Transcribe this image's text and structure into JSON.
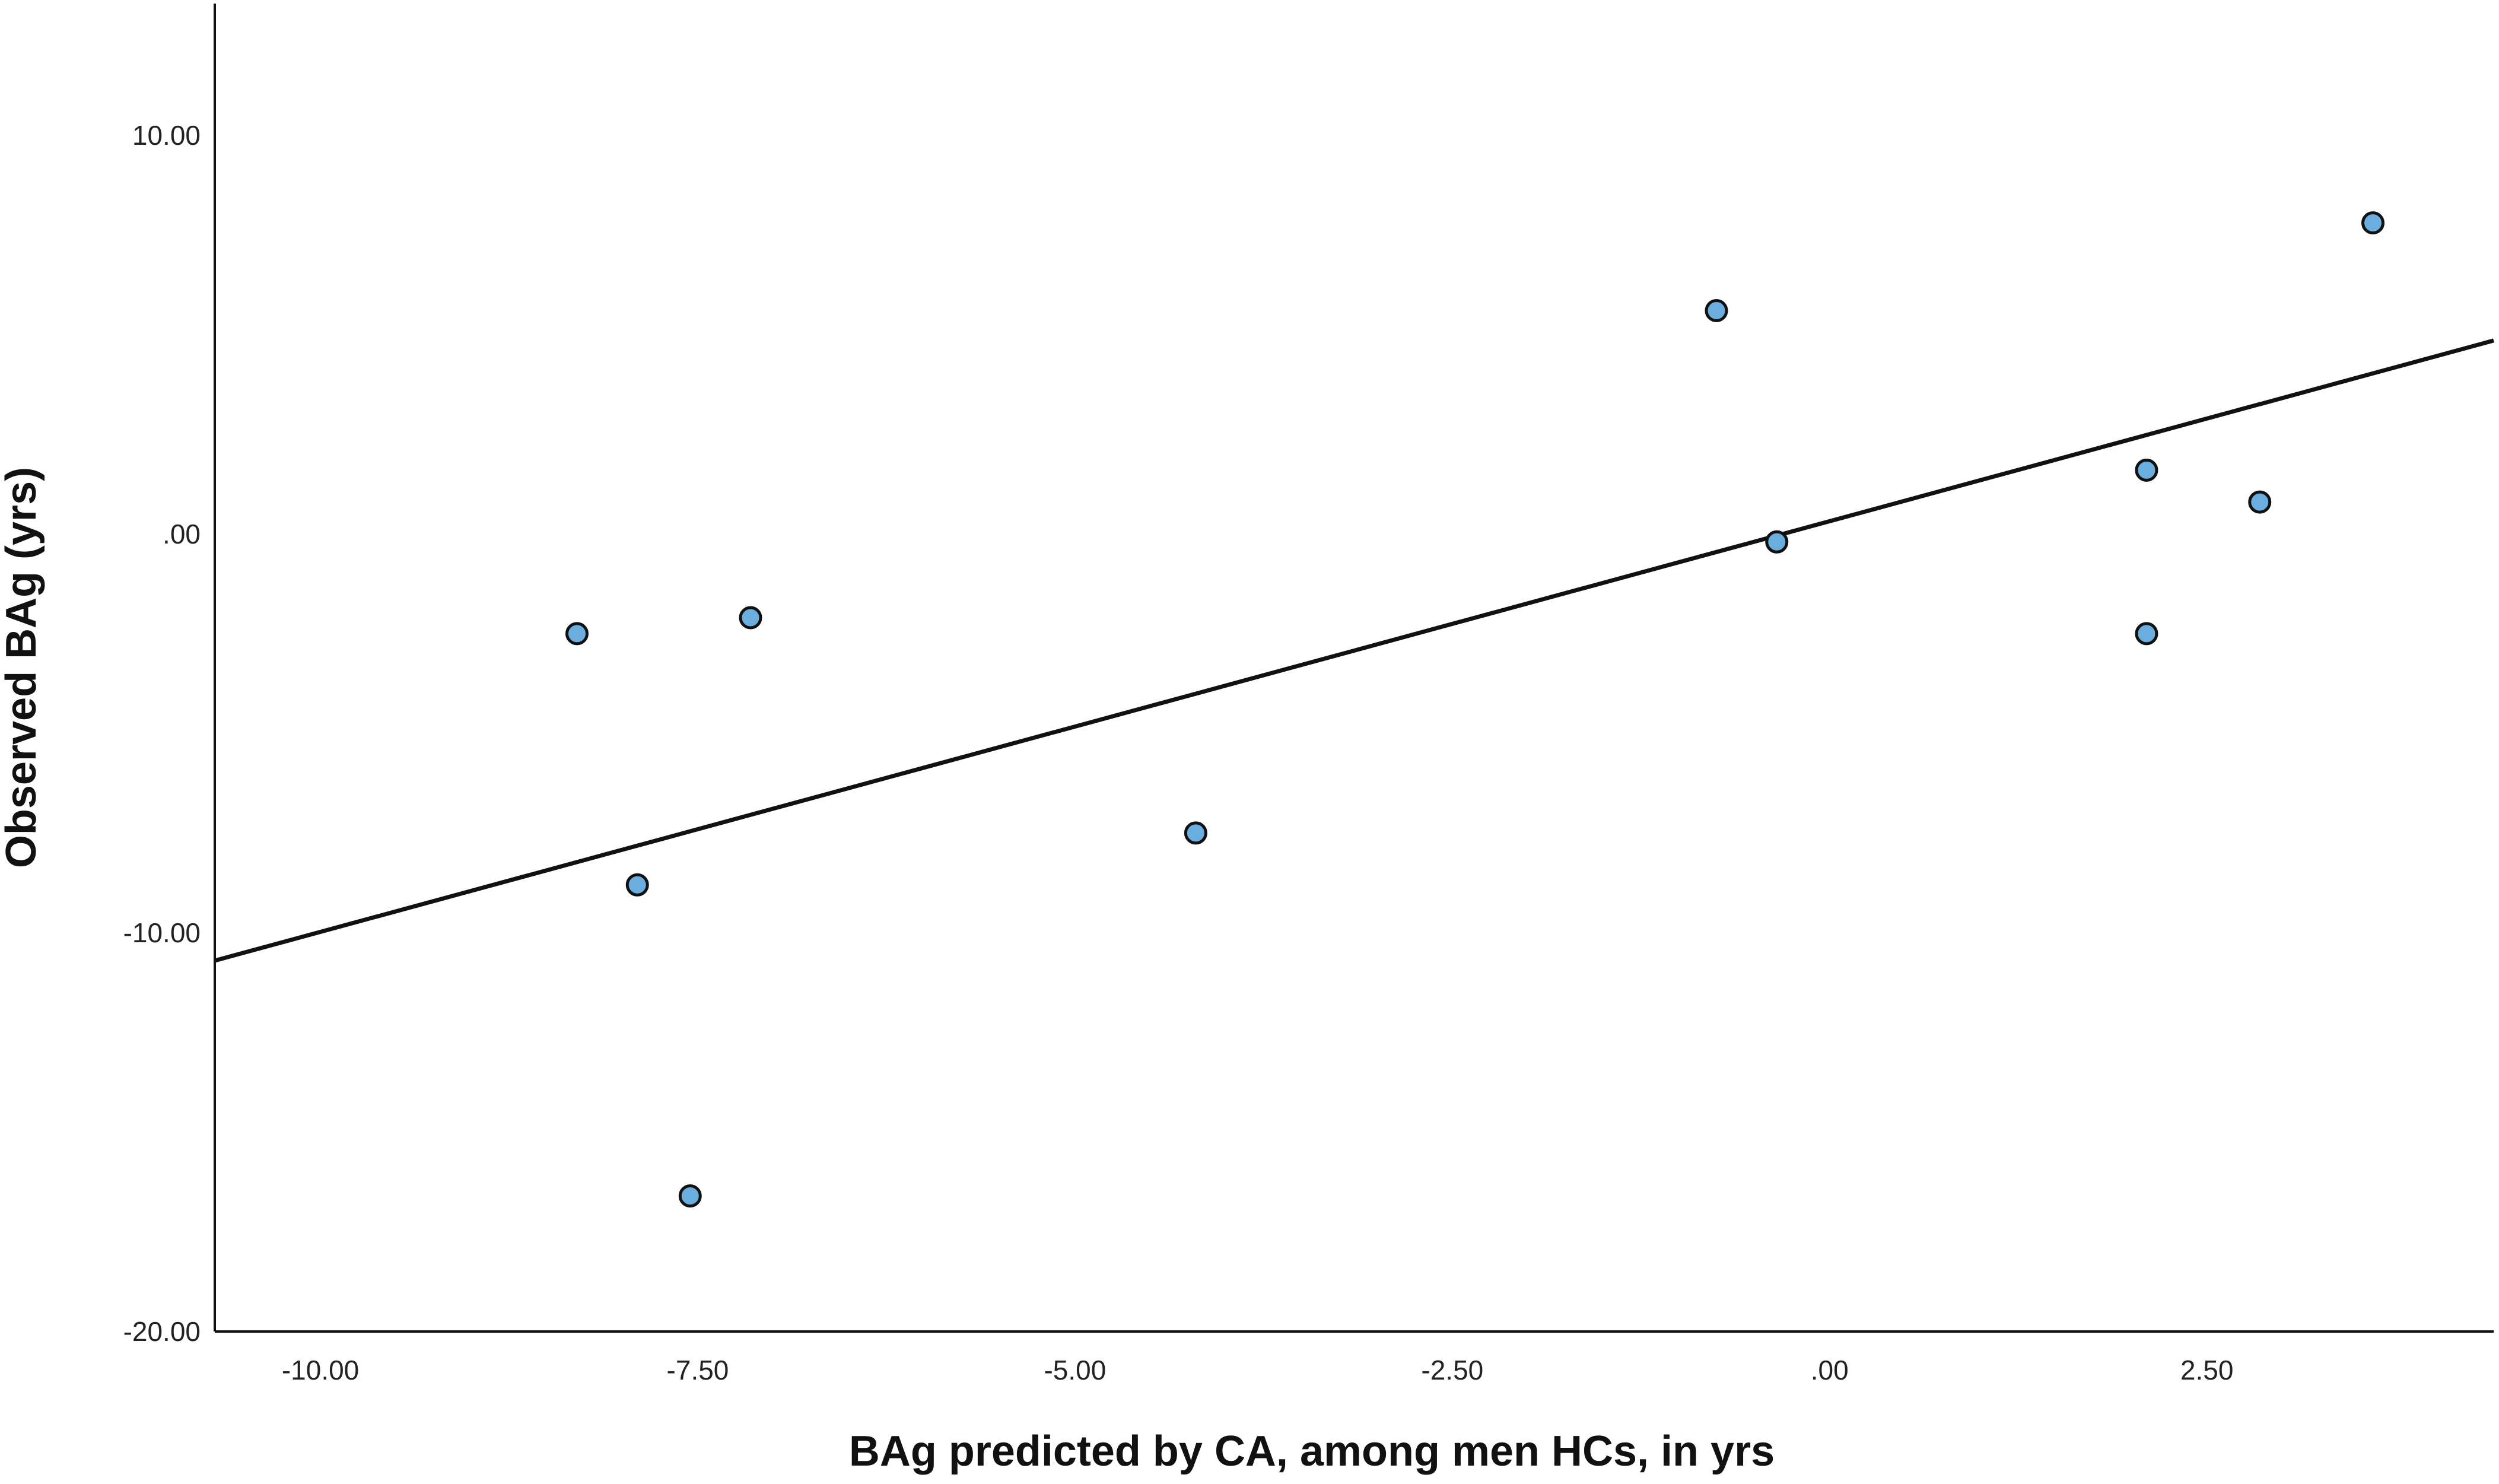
{
  "chart_data": {
    "type": "scatter",
    "xlabel": "BAg predicted by CA, among men HCs, in yrs",
    "ylabel": "Observed BAg (yrs)",
    "xlim": [
      -10.7,
      4.4
    ],
    "ylim": [
      -20.0,
      13.3
    ],
    "x_ticks": [
      {
        "value": -10.0,
        "label": "-10.00"
      },
      {
        "value": -7.5,
        "label": "-7.50"
      },
      {
        "value": -5.0,
        "label": "-5.00"
      },
      {
        "value": -2.5,
        "label": "-2.50"
      },
      {
        "value": 0.0,
        "label": ".00"
      },
      {
        "value": 2.5,
        "label": "2.50"
      }
    ],
    "y_ticks": [
      {
        "value": 10.0,
        "label": "10.00"
      },
      {
        "value": 0.0,
        "label": ".00"
      },
      {
        "value": -10.0,
        "label": "-10.00"
      },
      {
        "value": -20.0,
        "label": "-20.00"
      }
    ],
    "grid": false,
    "legend": "none",
    "points": [
      {
        "x": -8.3,
        "y": -2.5
      },
      {
        "x": -7.15,
        "y": -2.1
      },
      {
        "x": -7.9,
        "y": -8.8
      },
      {
        "x": -7.55,
        "y": -16.6
      },
      {
        "x": -4.2,
        "y": -7.5
      },
      {
        "x": -0.75,
        "y": 5.6
      },
      {
        "x": -0.35,
        "y": -0.2
      },
      {
        "x": 2.1,
        "y": 1.6
      },
      {
        "x": 2.1,
        "y": -2.5
      },
      {
        "x": 2.85,
        "y": 0.8
      },
      {
        "x": 3.6,
        "y": 7.8
      }
    ],
    "fit_line": {
      "x": [
        -10.7,
        4.4
      ],
      "y": [
        -10.7,
        4.85
      ]
    },
    "marker_color": "#6aaee0",
    "marker_edge_color": "#111111",
    "line_color": "#111111"
  }
}
